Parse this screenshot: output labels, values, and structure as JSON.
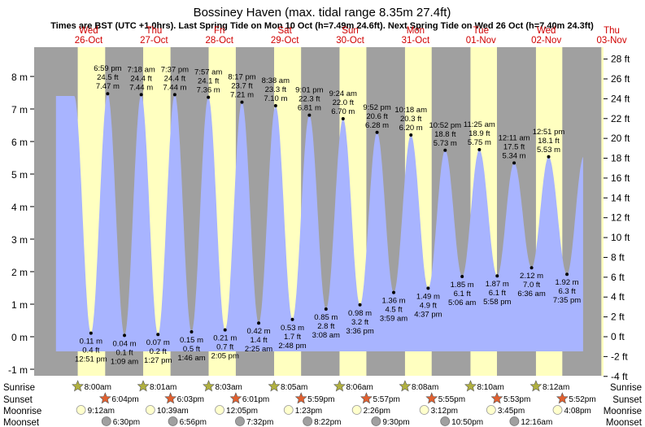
{
  "chart_data": {
    "type": "area",
    "title": "Bossiney Haven (max. tidal range 8.35m 27.4ft)",
    "subtitle": "Times are BST (UTC +1.0hrs). Last Spring Tide on Mon 10 Oct (h=7.49m 24.6ft). Next Spring Tide on Wed 26 Oct (h=7.40m 24.3ft)",
    "days": [
      {
        "day": "Wed",
        "date": "26-Oct"
      },
      {
        "day": "Thu",
        "date": "27-Oct"
      },
      {
        "day": "Fri",
        "date": "28-Oct"
      },
      {
        "day": "Sat",
        "date": "29-Oct"
      },
      {
        "day": "Sun",
        "date": "30-Oct"
      },
      {
        "day": "Mon",
        "date": "31-Oct"
      },
      {
        "day": "Tue",
        "date": "01-Nov"
      },
      {
        "day": "Wed",
        "date": "02-Nov"
      },
      {
        "day": "Thu",
        "date": "03-Nov"
      }
    ],
    "y_left": {
      "ylim": [
        -1.2,
        8.9
      ],
      "ticks": [
        -1,
        0,
        1,
        2,
        3,
        4,
        5,
        6,
        7,
        8
      ],
      "unit": "m"
    },
    "y_right": {
      "ticks": [
        -4,
        -2,
        0,
        2,
        4,
        6,
        8,
        10,
        12,
        14,
        16,
        18,
        20,
        22,
        24,
        26,
        28
      ],
      "unit": "ft"
    },
    "x_range_hours": [
      -8,
      201
    ],
    "tides": [
      {
        "t": "12:51 pm",
        "h": 0.11,
        "ft": "0.4 ft",
        "hm": "0.11 m",
        "type": "low",
        "hrs": 12.85
      },
      {
        "t": "6:59 pm",
        "h": 7.47,
        "ft": "24.5 ft",
        "hm": "7.47 m",
        "type": "high",
        "hrs": 18.98
      },
      {
        "t": "1:09 am",
        "h": 0.04,
        "ft": "0.1 ft",
        "hm": "0.04 m",
        "type": "low",
        "hrs": 25.15
      },
      {
        "t": "7:18 am",
        "h": 7.44,
        "ft": "24.4 ft",
        "hm": "7.44 m",
        "type": "high",
        "hrs": 31.3
      },
      {
        "t": "1:27 pm",
        "h": 0.07,
        "ft": "0.2 ft",
        "hm": "0.07 m",
        "type": "low",
        "hrs": 37.45
      },
      {
        "t": "7:37 pm",
        "h": 7.44,
        "ft": "24.4 ft",
        "hm": "7.44 m",
        "type": "high",
        "hrs": 43.62
      },
      {
        "t": "1:46 am",
        "h": 0.15,
        "ft": "0.5 ft",
        "hm": "0.15 m",
        "type": "low",
        "hrs": 49.77
      },
      {
        "t": "7:57 am",
        "h": 7.36,
        "ft": "24.1 ft",
        "hm": "7.36 m",
        "type": "high",
        "hrs": 55.95
      },
      {
        "t": "2:05 pm",
        "h": 0.21,
        "ft": "0.7 ft",
        "hm": "0.21 m",
        "type": "low",
        "hrs": 62.08
      },
      {
        "t": "8:17 pm",
        "h": 7.21,
        "ft": "23.7 ft",
        "hm": "7.21 m",
        "type": "high",
        "hrs": 68.28
      },
      {
        "t": "2:25 am",
        "h": 0.42,
        "ft": "1.4 ft",
        "hm": "0.42 m",
        "type": "low",
        "hrs": 74.42
      },
      {
        "t": "8:38 am",
        "h": 7.1,
        "ft": "23.3 ft",
        "hm": "7.10 m",
        "type": "high",
        "hrs": 80.63
      },
      {
        "t": "2:48 pm",
        "h": 0.53,
        "ft": "1.7 ft",
        "hm": "0.53 m",
        "type": "low",
        "hrs": 86.8
      },
      {
        "t": "9:01 pm",
        "h": 6.81,
        "ft": "22.3 ft",
        "hm": "6.81 m",
        "type": "high",
        "hrs": 93.02
      },
      {
        "t": "3:08 am",
        "h": 0.85,
        "ft": "2.8 ft",
        "hm": "0.85 m",
        "type": "low",
        "hrs": 99.13
      },
      {
        "t": "9:24 am",
        "h": 6.7,
        "ft": "22.0 ft",
        "hm": "6.70 m",
        "type": "high",
        "hrs": 105.4
      },
      {
        "t": "3:36 pm",
        "h": 0.98,
        "ft": "3.2 ft",
        "hm": "0.98 m",
        "type": "low",
        "hrs": 111.6
      },
      {
        "t": "9:52 pm",
        "h": 6.28,
        "ft": "20.6 ft",
        "hm": "6.28 m",
        "type": "high",
        "hrs": 117.87
      },
      {
        "t": "3:59 am",
        "h": 1.36,
        "ft": "4.5 ft",
        "hm": "1.36 m",
        "type": "low",
        "hrs": 123.98
      },
      {
        "t": "10:18 am",
        "h": 6.2,
        "ft": "20.3 ft",
        "hm": "6.20 m",
        "type": "high",
        "hrs": 130.3
      },
      {
        "t": "4:37 pm",
        "h": 1.49,
        "ft": "4.9 ft",
        "hm": "1.49 m",
        "type": "low",
        "hrs": 136.62
      },
      {
        "t": "10:52 pm",
        "h": 5.73,
        "ft": "18.8 ft",
        "hm": "5.73 m",
        "type": "high",
        "hrs": 142.87
      },
      {
        "t": "5:06 am",
        "h": 1.85,
        "ft": "6.1 ft",
        "hm": "1.85 m",
        "type": "low",
        "hrs": 149.1
      },
      {
        "t": "11:25 am",
        "h": 5.75,
        "ft": "18.9 ft",
        "hm": "5.75 m",
        "type": "high",
        "hrs": 155.42
      },
      {
        "t": "5:58 pm",
        "h": 1.87,
        "ft": "6.1 ft",
        "hm": "1.87 m",
        "type": "low",
        "hrs": 161.97
      },
      {
        "t": "12:11 am",
        "h": 5.34,
        "ft": "17.5 ft",
        "hm": "5.34 m",
        "type": "high",
        "hrs": 168.18
      },
      {
        "t": "6:36 am",
        "h": 2.12,
        "ft": "7.0 ft",
        "hm": "2.12 m",
        "type": "low",
        "hrs": 174.6
      },
      {
        "t": "12:51 pm",
        "h": 5.53,
        "ft": "18.1 ft",
        "hm": "5.53 m",
        "type": "high",
        "hrs": 180.85
      },
      {
        "t": "7:35 pm",
        "h": 1.92,
        "ft": "6.3 ft",
        "hm": "1.92 m",
        "type": "low",
        "hrs": 187.58
      }
    ],
    "sun": [
      {
        "rise": "8:00am",
        "rise_h": 8.0,
        "set": "6:04pm",
        "set_h": 18.07
      },
      {
        "rise": "8:01am",
        "rise_h": 32.02,
        "set": "6:03pm",
        "set_h": 42.05
      },
      {
        "rise": "8:03am",
        "rise_h": 56.05,
        "set": "6:01pm",
        "set_h": 66.02
      },
      {
        "rise": "8:05am",
        "rise_h": 80.08,
        "set": "5:59pm",
        "set_h": 89.98
      },
      {
        "rise": "8:06am",
        "rise_h": 104.1,
        "set": "5:57pm",
        "set_h": 113.95
      },
      {
        "rise": "8:08am",
        "rise_h": 128.13,
        "set": "5:55pm",
        "set_h": 137.92
      },
      {
        "rise": "8:10am",
        "rise_h": 152.17,
        "set": "5:53pm",
        "set_h": 161.88
      },
      {
        "rise": "8:12am",
        "rise_h": 176.2,
        "set": "5:52pm",
        "set_h": 185.87
      }
    ],
    "moonrise": [
      {
        "t": "9:12am",
        "h": 9.2
      },
      {
        "t": "10:39am",
        "h": 34.65
      },
      {
        "t": "12:05pm",
        "h": 60.08
      },
      {
        "t": "1:23pm",
        "h": 85.38
      },
      {
        "t": "2:26pm",
        "h": 110.43
      },
      {
        "t": "3:12pm",
        "h": 135.2
      },
      {
        "t": "3:45pm",
        "h": 159.75
      },
      {
        "t": "4:08pm",
        "h": 184.13
      }
    ],
    "moonset": [
      {
        "t": "6:30pm",
        "h": 18.5
      },
      {
        "t": "6:56pm",
        "h": 42.93
      },
      {
        "t": "7:32pm",
        "h": 67.53
      },
      {
        "t": "8:22pm",
        "h": 92.37
      },
      {
        "t": "9:30pm",
        "h": 117.5
      },
      {
        "t": "10:50pm",
        "h": 142.83
      },
      {
        "t": "12:16am",
        "h": 168.27
      }
    ],
    "row_labels": {
      "sunrise": "Sunrise",
      "sunset": "Sunset",
      "moonrise": "Moonrise",
      "moonset": "Moonset"
    },
    "colors": {
      "night": "#a0a0a0",
      "day": "#ffffc0",
      "water": "#a8b4ff",
      "day_text": "#d00000",
      "ink": "#000000",
      "sunrise_star": "#b0b040",
      "sunset_star": "#e06030",
      "moonrise": "#ffffcc",
      "moonset": "#a0a0a0"
    }
  }
}
